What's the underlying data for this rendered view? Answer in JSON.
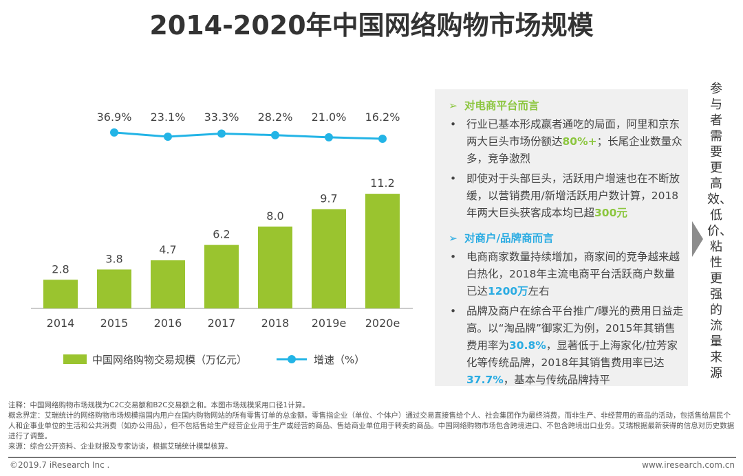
{
  "title": "2014-2020年中国网络购物市场规模",
  "chart_data": {
    "type": "bar+line",
    "categories": [
      "2014",
      "2015",
      "2016",
      "2017",
      "2018",
      "2019e",
      "2020e"
    ],
    "series": [
      {
        "name": "中国网络购物交易规模（万亿元）",
        "type": "bar",
        "values": [
          2.8,
          3.8,
          4.7,
          6.2,
          8.0,
          9.7,
          11.2
        ],
        "color": "#9ac42f"
      },
      {
        "name": "增速（%）",
        "type": "line",
        "values": [
          null,
          36.9,
          23.1,
          33.3,
          28.2,
          21.0,
          16.2
        ],
        "labels": [
          "",
          "36.9%",
          "23.1%",
          "33.3%",
          "28.2%",
          "21.0%",
          "16.2%"
        ],
        "color": "#23b4e6"
      }
    ],
    "legend_placement": "bottom"
  },
  "panel": {
    "section1": {
      "title": "对电商平台而言",
      "color": "#8cc63f",
      "items": [
        {
          "pre": "行业已基本形成赢者通吃的局面，阿里和京东两大巨头市场份额达",
          "hl": "80%+",
          "post": "；长尾企业数量众多，竞争激烈"
        },
        {
          "pre": "即使对于头部巨头，活跃用户增速也在不断放缓，以营销费用/新增活跃用户数计算，2018年两大巨头获客成本均已超",
          "hl": "300元",
          "post": ""
        }
      ]
    },
    "section2": {
      "title": "对商户/品牌商而言",
      "color": "#29abe2",
      "items": [
        {
          "pre": "电商商家数量持续增加，商家间的竞争越来越白热化，2018年主流电商平台活跃商户数量已达",
          "hl": "1200万",
          "post": "左右"
        },
        {
          "pre": "品牌及商户在综合平台推广/曝光的费用日益走高。以“淘品牌”御家汇为例，2015年其销售费用率为",
          "hl": "30.8%",
          "mid": "，显著低于上海家化/拉芳家化等传统品牌，2018年其销售费用率已达",
          "hl2": "37.7%",
          "post": "，基本与传统品牌持平"
        }
      ]
    }
  },
  "side_text": "参与者需要更高效、低价、粘性更强的流量来源",
  "notes": [
    "注释：中国网络购物市场规模为C2C交易额和B2C交易额之和。本图市场规模采用口径1计算。",
    "概念界定：艾瑞统计的网络购物市场规模指国内用户在国内购物网站的所有零售订单的总金额。零售指企业（单位、个体户）通过交易直接售给个人、社会集团作为最终消费，而非生产、非经营用的商品的活动，包括售给居民个人和企事业单位的生活和公共消费（如办公用品），但不包括售给生产经营企业用于生产或经营的商品、售给商业单位用于转卖的商品。中国网络购物市场包含跨境进口、不包含跨境出口业务。艾瑞根据最新获得的信息对历史数据进行了调整。",
    "来源：综合公开资料、企业财报及专家访谈，根据艾瑞统计模型核算。"
  ],
  "footer": {
    "left": "©2019.7 iResearch Inc .",
    "right": "www.iresearch.com.cn"
  }
}
